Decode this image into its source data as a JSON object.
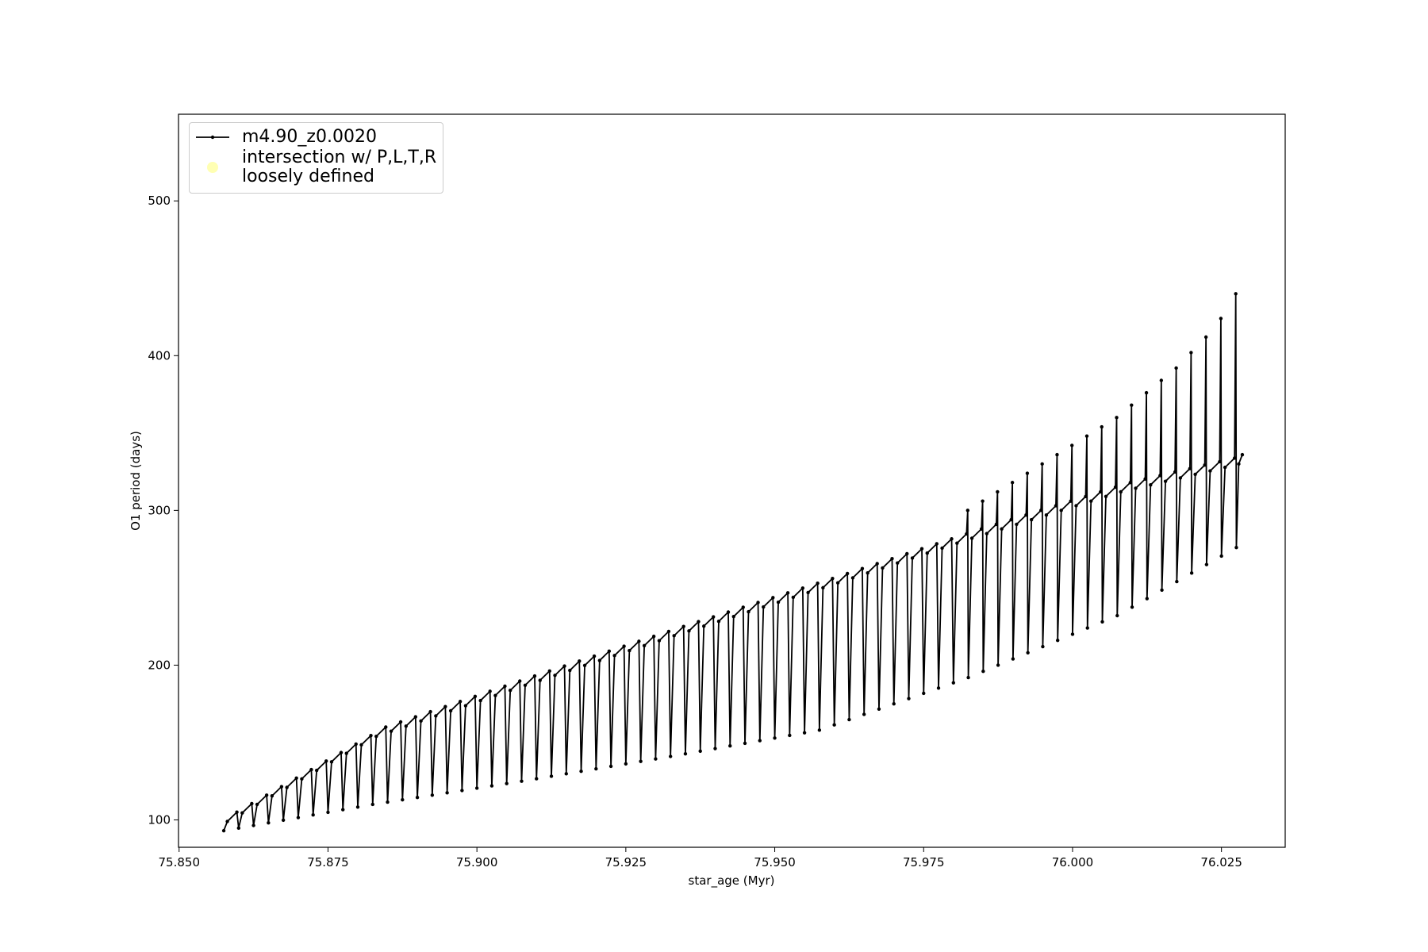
{
  "chart_data": {
    "type": "line",
    "xlabel": "star_age (Myr)",
    "ylabel": "O1 period (days)",
    "xlim": [
      75.8499,
      76.0357
    ],
    "ylim": [
      82.3,
      556
    ],
    "xticks": [
      {
        "value": 75.85,
        "label": "75.850"
      },
      75.875,
      {
        "value": 75.9,
        "label": "75.900"
      },
      75.925,
      {
        "value": 75.95,
        "label": "75.950"
      },
      75.975,
      {
        "value": 76.0,
        "label": "76.000"
      },
      76.025
    ],
    "yticks": [
      100,
      200,
      300,
      400,
      500
    ],
    "legend": "upper left",
    "grid": false,
    "x": [
      75.8575,
      75.8581,
      75.8597,
      75.86,
      75.8606,
      75.8622,
      75.8625,
      75.8631,
      75.8647,
      75.865,
      75.8656,
      75.8672,
      75.8675,
      75.8681,
      75.8697,
      75.87,
      75.8706,
      75.8722,
      75.8725,
      75.8731,
      75.8747,
      75.875,
      75.8756,
      75.8772,
      75.8775,
      75.8781,
      75.8797,
      75.88,
      75.8806,
      75.8822,
      75.8825,
      75.8831,
      75.8847,
      75.885,
      75.8856,
      75.8872,
      75.8875,
      75.8881,
      75.8897,
      75.89,
      75.8906,
      75.8922,
      75.8925,
      75.8931,
      75.8947,
      75.895,
      75.8956,
      75.8972,
      75.8975,
      75.8981,
      75.8997,
      75.9,
      75.9006,
      75.9022,
      75.9025,
      75.9031,
      75.9047,
      75.905,
      75.9056,
      75.9072,
      75.9075,
      75.9081,
      75.9097,
      75.91,
      75.9106,
      75.9122,
      75.9125,
      75.9131,
      75.9147,
      75.915,
      75.9156,
      75.9172,
      75.9175,
      75.9181,
      75.9197,
      75.92,
      75.9206,
      75.9222,
      75.9225,
      75.9231,
      75.9247,
      75.925,
      75.9256,
      75.9272,
      75.9275,
      75.9281,
      75.9297,
      75.93,
      75.9306,
      75.9322,
      75.9325,
      75.9331,
      75.9347,
      75.935,
      75.9356,
      75.9372,
      75.9375,
      75.9381,
      75.9397,
      75.94,
      75.9406,
      75.9422,
      75.9425,
      75.9431,
      75.9447,
      75.945,
      75.9456,
      75.9472,
      75.9475,
      75.9481,
      75.9497,
      75.95,
      75.9506,
      75.9522,
      75.9525,
      75.9531,
      75.9547,
      75.955,
      75.9556,
      75.9572,
      75.9575,
      75.9581,
      75.9597,
      75.96,
      75.9606,
      75.9622,
      75.9625,
      75.9631,
      75.9647,
      75.965,
      75.9656,
      75.9672,
      75.9675,
      75.9681,
      75.9697,
      75.97,
      75.9706,
      75.9722,
      75.9725,
      75.9731,
      75.9747,
      75.975,
      75.9756,
      75.9772,
      75.9775,
      75.9781,
      75.9797,
      75.98,
      75.9806,
      75.9822,
      75.9824,
      75.9825,
      75.9831,
      75.9847,
      75.9849,
      75.985,
      75.9856,
      75.9872,
      75.9874,
      75.9875,
      75.9881,
      75.9897,
      75.9899,
      75.99,
      75.9906,
      75.9922,
      75.9924,
      75.9925,
      75.9931,
      75.9947,
      75.9949,
      75.995,
      75.9956,
      75.9972,
      75.9974,
      75.9975,
      75.9981,
      75.9997,
      75.9999,
      76.0,
      76.0006,
      76.0022,
      76.0024,
      76.0025,
      76.0031,
      76.0047,
      76.0049,
      76.005,
      76.0056,
      76.0072,
      76.0074,
      76.0075,
      76.0081,
      76.0097,
      76.0099,
      76.01,
      76.0106,
      76.0122,
      76.0124,
      76.0125,
      76.0131,
      76.0147,
      76.0149,
      76.015,
      76.0156,
      76.0172,
      76.0174,
      76.0175,
      76.0181,
      76.0197,
      76.0199,
      76.02,
      76.0206,
      76.0222,
      76.0224,
      76.0225,
      76.0231,
      76.0247,
      76.0249,
      76.025,
      76.0256,
      76.0272,
      76.0274,
      76.0275,
      76.0279,
      76.0285
    ],
    "series": [
      {
        "name": "m4.90_z0.0020",
        "color": "#000000",
        "values": [
          93,
          99,
          105,
          94.7,
          104.5,
          110.5,
          96.4,
          110,
          116,
          98.1,
          115.5,
          121.5,
          99.8,
          121,
          127,
          101.5,
          126.5,
          132.5,
          103.2,
          132,
          138,
          104.9,
          137.5,
          143.5,
          106.6,
          143,
          149,
          108.3,
          148.5,
          154.5,
          110,
          154,
          160,
          111.5,
          157.3,
          163.3,
          113,
          160.6,
          166.6,
          114.5,
          163.9,
          169.9,
          116,
          167.2,
          173.2,
          117.5,
          170.5,
          176.5,
          119,
          173.8,
          179.8,
          120.5,
          177.1,
          183.1,
          122,
          180.4,
          186.4,
          123.5,
          183.7,
          189.7,
          125,
          187,
          193,
          126.6,
          190.2,
          196.2,
          128.2,
          193.4,
          199.4,
          129.8,
          196.6,
          202.6,
          131.4,
          199.8,
          205.8,
          133,
          203,
          209,
          134.6,
          206.2,
          212.2,
          136.2,
          209.4,
          215.4,
          137.8,
          212.6,
          218.6,
          139.4,
          215.8,
          221.8,
          141,
          219,
          225,
          142.7,
          222.1,
          228.1,
          144.4,
          225.2,
          231.2,
          146.1,
          228.3,
          234.3,
          147.8,
          231.4,
          237.4,
          149.5,
          234.5,
          240.5,
          151.2,
          237.6,
          243.6,
          152.9,
          240.7,
          246.7,
          154.6,
          243.8,
          249.8,
          156.3,
          246.9,
          252.9,
          158,
          250,
          256,
          161.4,
          253.2,
          259.2,
          164.8,
          256.4,
          262.4,
          168.2,
          259.6,
          265.6,
          171.6,
          262.8,
          268.8,
          175,
          266,
          272,
          178.4,
          269.2,
          275.2,
          181.8,
          272.4,
          278.4,
          185.2,
          275.6,
          281.6,
          188.6,
          278.8,
          284.8,
          300,
          192,
          282,
          288,
          306,
          196,
          285,
          291,
          312,
          200,
          288,
          294,
          318,
          204,
          291,
          297,
          324,
          208,
          294,
          300,
          330,
          212,
          297,
          303,
          336,
          216,
          300,
          306,
          342,
          220,
          303,
          309,
          348,
          224,
          306,
          312,
          354,
          228,
          309,
          315,
          360,
          232,
          312,
          318,
          368,
          237.5,
          314.3,
          320.3,
          376,
          243,
          316.5,
          322.5,
          384,
          248.5,
          318.8,
          324.8,
          392,
          254,
          321,
          327,
          402,
          259.5,
          323.3,
          329.3,
          412,
          265,
          325.5,
          331.5,
          424,
          270.5,
          327.8,
          333.8,
          440,
          276,
          330,
          336
        ]
      },
      {
        "name": "intersection w/ P,L,T,R\nloosely defined",
        "color": "#ffffb3",
        "type": "scatter",
        "values": []
      }
    ]
  }
}
